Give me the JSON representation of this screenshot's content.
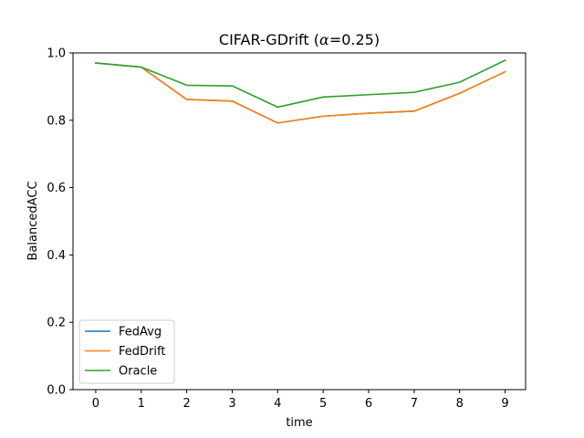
{
  "chart_data": {
    "type": "line",
    "title_prefix": "CIFAR-GDrift (",
    "title_symbol": "α",
    "title_suffix": "=0.25)",
    "xlabel": "time",
    "ylabel": "BalancedACC",
    "x": [
      0,
      1,
      2,
      3,
      4,
      5,
      6,
      7,
      8,
      9
    ],
    "xlim": [
      -0.5,
      9.45
    ],
    "ylim": [
      0.0,
      1.0
    ],
    "xticks": [
      "0",
      "1",
      "2",
      "3",
      "4",
      "5",
      "6",
      "7",
      "8",
      "9"
    ],
    "yticks": [
      "0.0",
      "0.2",
      "0.4",
      "0.6",
      "0.8",
      "1.0"
    ],
    "grid": false,
    "legend_position": "lower-left",
    "series": [
      {
        "name": "FedAvg",
        "color": "#1f77b4",
        "values": [
          0.97,
          0.958,
          0.862,
          0.857,
          0.792,
          0.812,
          0.821,
          0.827,
          0.88,
          0.944
        ]
      },
      {
        "name": "FedDrift",
        "color": "#ff7f0e",
        "values": [
          0.97,
          0.958,
          0.862,
          0.857,
          0.792,
          0.812,
          0.821,
          0.827,
          0.88,
          0.944
        ]
      },
      {
        "name": "Oracle",
        "color": "#2ca02c",
        "values": [
          0.97,
          0.958,
          0.904,
          0.902,
          0.839,
          0.869,
          0.876,
          0.883,
          0.913,
          0.978
        ]
      }
    ]
  }
}
